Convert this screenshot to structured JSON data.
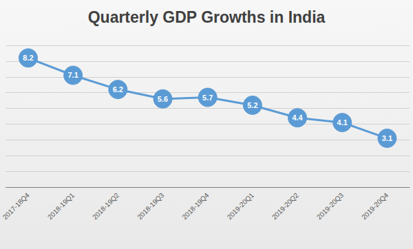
{
  "chart_data": {
    "type": "line",
    "title": "Quarterly GDP Growths in India",
    "categories": [
      "2017-18Q4",
      "2018-19Q1",
      "2018-19Q2",
      "2018-19Q3",
      "2018-19Q4",
      "2019-20Q1",
      "2019-20Q2",
      "2019-20Q3",
      "2019-20Q4"
    ],
    "values": [
      8.2,
      7.1,
      6.2,
      5.6,
      5.7,
      5.2,
      4.4,
      4.1,
      3.1
    ],
    "color": "#5b9bd5",
    "ylim": [
      0,
      9
    ],
    "yticks": [
      0,
      1,
      2,
      3,
      4,
      5,
      6,
      7,
      8,
      9
    ],
    "grid": true,
    "data_labels": true,
    "marker": "circle",
    "tick_labels": "x"
  }
}
